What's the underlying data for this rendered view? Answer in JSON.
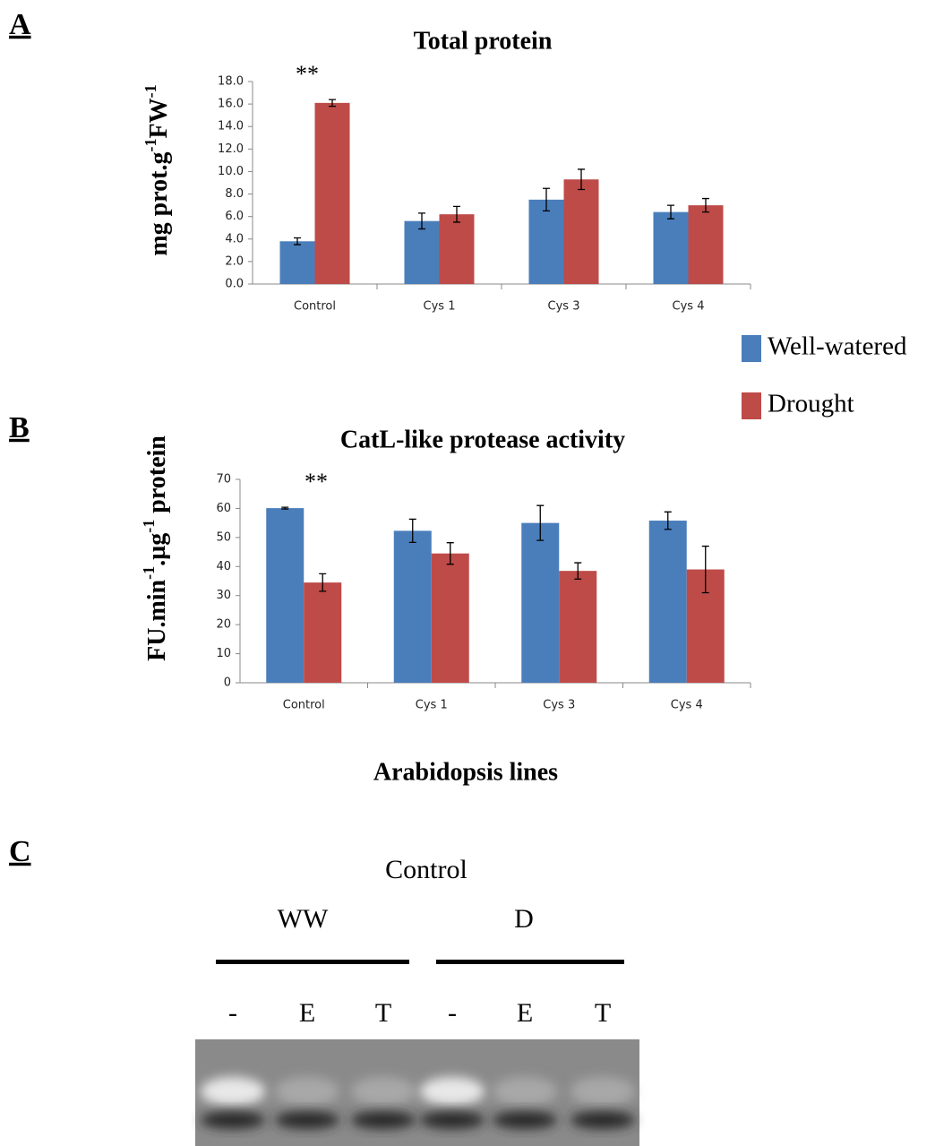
{
  "panels": {
    "a": "A",
    "b": "B",
    "c": "C"
  },
  "chart_data": [
    {
      "type": "bar",
      "title": "Total protein",
      "y_label": [
        "mg prot.g",
        "-1",
        "FW",
        "-1"
      ],
      "categories": [
        "Control",
        "Cys 1",
        "Cys 3",
        "Cys 4"
      ],
      "series": [
        {
          "name": "Well-watered",
          "color": "#4a7ebb",
          "values": [
            3.8,
            5.6,
            7.5,
            6.4
          ],
          "errors": [
            0.3,
            0.7,
            1.0,
            0.6
          ]
        },
        {
          "name": "Drought",
          "color": "#be4b48",
          "values": [
            16.1,
            6.2,
            9.3,
            7.0
          ],
          "errors": [
            0.3,
            0.7,
            0.9,
            0.6
          ]
        }
      ],
      "ylim": [
        0,
        18
      ],
      "yticks": [
        {
          "value": 0,
          "label": "0.0"
        },
        {
          "value": 2,
          "label": "2.0"
        },
        {
          "value": 4,
          "label": "4.0"
        },
        {
          "value": 6,
          "label": "6.0"
        },
        {
          "value": 8,
          "label": "8.0"
        },
        {
          "value": 10,
          "label": "10.0"
        },
        {
          "value": 12,
          "label": "12.0"
        },
        {
          "value": 14,
          "label": "14.0"
        },
        {
          "value": 16,
          "label": "16.0"
        },
        {
          "value": 18,
          "label": "18.0"
        }
      ],
      "annotation": "**",
      "legend": "right"
    },
    {
      "type": "bar",
      "title": "CatL-like protease activity",
      "y_label": [
        "FU.min",
        "-1",
        ".µg",
        "-1",
        " protein"
      ],
      "x_label": "Arabidopsis lines",
      "categories": [
        "Control",
        "Cys 1",
        "Cys 3",
        "Cys 4"
      ],
      "series": [
        {
          "color": "#4a7ebb",
          "values": [
            60.1,
            52.3,
            55.0,
            55.8
          ],
          "errors": [
            0.3,
            4.0,
            6.0,
            3.0
          ]
        },
        {
          "color": "#be4b48",
          "values": [
            34.5,
            44.5,
            38.5,
            39.0
          ],
          "errors": [
            3.0,
            3.7,
            2.8,
            8.0
          ]
        }
      ],
      "ylim": [
        0,
        70
      ],
      "yticks": [
        0,
        10,
        20,
        30,
        40,
        50,
        60,
        70
      ],
      "annotation": "**"
    }
  ],
  "gel": {
    "title": "Control",
    "groups": [
      "WW",
      "D"
    ],
    "lanes": [
      "-",
      "E",
      "T",
      "-",
      "E",
      "T"
    ]
  }
}
